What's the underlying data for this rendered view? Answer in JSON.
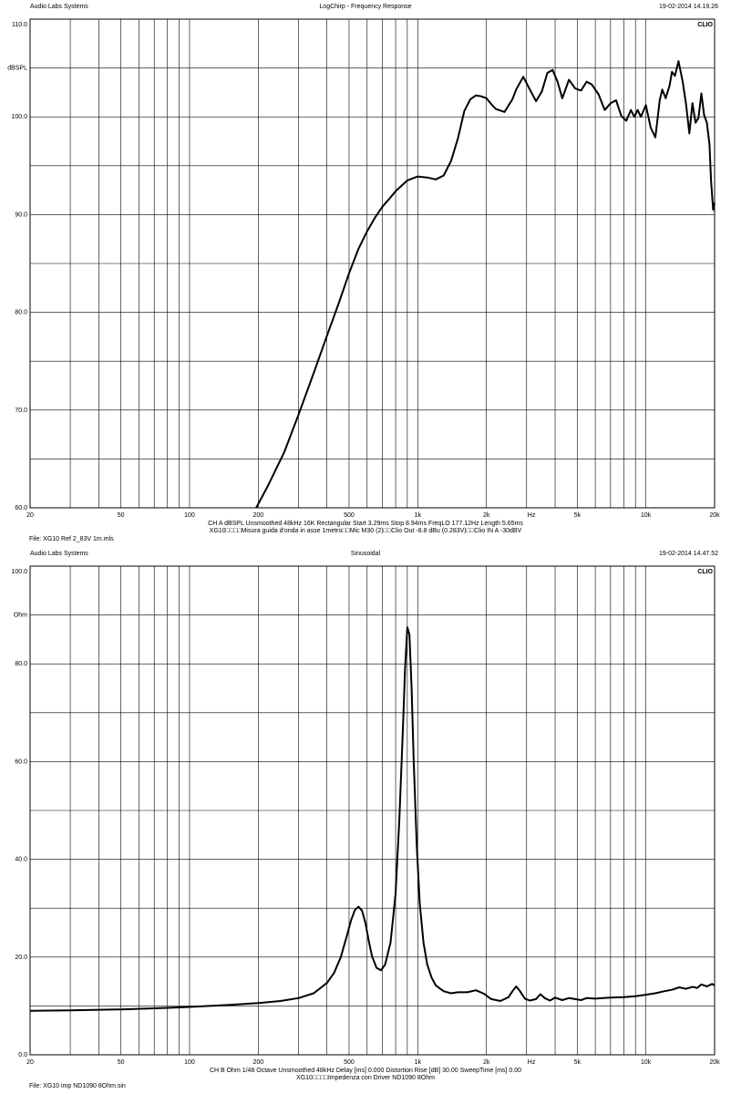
{
  "chart_data": [
    {
      "type": "line",
      "header_left": "Audio Labs Systems",
      "title": "LogChirp - Frequency Response",
      "header_right": "19-02-2014 14.19.26",
      "brand": "CLIO",
      "ylabel": "dBSPL",
      "xunit": "Hz",
      "xscale": "log",
      "xlim": [
        20,
        20000
      ],
      "ylim": [
        60,
        110
      ],
      "yticks": [
        60,
        70,
        80,
        90,
        100,
        110
      ],
      "ytick_labels": [
        "60.0",
        "70.0",
        "80.0",
        "90.0",
        "100.0",
        "110.0"
      ],
      "xtick_labels": [
        {
          "v": 20,
          "t": "20"
        },
        {
          "v": 50,
          "t": "50"
        },
        {
          "v": 100,
          "t": "100"
        },
        {
          "v": 200,
          "t": "200"
        },
        {
          "v": 500,
          "t": "500"
        },
        {
          "v": 1000,
          "t": "1k"
        },
        {
          "v": 2000,
          "t": "2k"
        },
        {
          "v": 5000,
          "t": "5k"
        },
        {
          "v": 10000,
          "t": "10k"
        },
        {
          "v": 20000,
          "t": "20k"
        }
      ],
      "footer_lines": [
        "CH A   dBSPL   Unsmoothed   48kHz   16K   Rectangular   Start 3.29ms   Stop 8.94ms   FreqLO 177.12Hz   Length 5.65ms",
        "XG10□□□□Misura guida d'onda in asse  1metro□□Mic M30 (2)□□Clio Out -8.8 dBu (0.283V)□□Clio IN A -30dBV"
      ],
      "file": "File: XG10 Ref 2_83V 1m.mls",
      "grid": true,
      "series": [
        {
          "x": [
            196,
            220,
            260,
            300,
            350,
            400,
            450,
            500,
            550,
            600,
            650,
            700,
            750,
            800,
            900,
            1000,
            1100,
            1200,
            1300,
            1400,
            1500,
            1600,
            1700,
            1800,
            1900,
            2000,
            2100,
            2200,
            2400,
            2600,
            2700,
            2900,
            3100,
            3300,
            3500,
            3700,
            3900,
            4100,
            4300,
            4600,
            4900,
            5200,
            5500,
            5800,
            6200,
            6600,
            7000,
            7400,
            7800,
            8200,
            8600,
            8900,
            9200,
            9500,
            10000,
            10500,
            11000,
            11500,
            11800,
            12200,
            12700,
            13000,
            13400,
            13900,
            14500,
            15000,
            15500,
            16000,
            16500,
            17000,
            17500,
            18000,
            18500,
            19000,
            19300,
            19700,
            20000
          ],
          "y": [
            60.0,
            62.2,
            65.7,
            69.5,
            73.8,
            77.6,
            80.9,
            84.0,
            86.5,
            88.3,
            89.7,
            90.8,
            91.6,
            92.4,
            93.5,
            93.9,
            93.8,
            93.6,
            94.0,
            95.5,
            97.8,
            100.6,
            101.8,
            102.2,
            102.1,
            101.9,
            101.3,
            100.8,
            100.5,
            101.8,
            102.8,
            104.1,
            102.8,
            101.6,
            102.6,
            104.5,
            104.8,
            103.6,
            101.9,
            103.8,
            102.9,
            102.7,
            103.6,
            103.3,
            102.3,
            100.7,
            101.4,
            101.7,
            100.1,
            99.6,
            100.7,
            100.0,
            100.7,
            100.0,
            101.2,
            98.9,
            97.9,
            101.7,
            102.8,
            101.9,
            103.2,
            104.6,
            104.2,
            105.7,
            103.6,
            101.3,
            98.3,
            101.4,
            99.4,
            99.9,
            102.4,
            100.2,
            99.4,
            97.2,
            93.5,
            90.5,
            91.2
          ]
        }
      ]
    },
    {
      "type": "line",
      "header_left": "Audio Labs Systems",
      "title": "Sinusoidal",
      "header_right": "19-02-2014 14.47.52",
      "brand": "CLIO",
      "ylabel": "Ohm",
      "xunit": "Hz",
      "xscale": "log",
      "xlim": [
        20,
        20000
      ],
      "ylim": [
        0,
        100
      ],
      "yticks": [
        0,
        20,
        40,
        60,
        80,
        100
      ],
      "ytick_labels": [
        "0.0",
        "20.0",
        "40.0",
        "60.0",
        "80.0",
        "100.0"
      ],
      "xtick_labels": [
        {
          "v": 20,
          "t": "20"
        },
        {
          "v": 50,
          "t": "50"
        },
        {
          "v": 100,
          "t": "100"
        },
        {
          "v": 200,
          "t": "200"
        },
        {
          "v": 500,
          "t": "500"
        },
        {
          "v": 1000,
          "t": "1k"
        },
        {
          "v": 2000,
          "t": "2k"
        },
        {
          "v": 5000,
          "t": "5k"
        },
        {
          "v": 10000,
          "t": "10k"
        },
        {
          "v": 20000,
          "t": "20k"
        }
      ],
      "footer_lines": [
        "CH B   Ohm   1/48 Octave   Unsmoothed   48kHz   Delay [ms] 0.000   Distortion Rise [dB] 30.00   SweepTime [ms] 0.00",
        "XG10□□□□Impedenza con Driver ND1090 8Ohm"
      ],
      "file": "File: XG10 imp ND1090 8Ohm.sin",
      "grid": true,
      "series": [
        {
          "x": [
            20,
            30,
            50,
            80,
            100,
            150,
            200,
            250,
            300,
            350,
            400,
            430,
            460,
            490,
            510,
            530,
            550,
            570,
            590,
            610,
            630,
            660,
            690,
            720,
            760,
            800,
            830,
            860,
            880,
            900,
            920,
            940,
            960,
            990,
            1020,
            1060,
            1100,
            1150,
            1200,
            1300,
            1400,
            1500,
            1650,
            1800,
            1950,
            2100,
            2300,
            2500,
            2600,
            2700,
            2800,
            2950,
            3100,
            3300,
            3450,
            3600,
            3800,
            4000,
            4300,
            4600,
            4900,
            5200,
            5500,
            6000,
            6500,
            7000,
            8000,
            9000,
            10000,
            11000,
            12000,
            13000,
            14000,
            15000,
            16000,
            16800,
            17500,
            18500,
            19500,
            20000
          ],
          "y": [
            9.0,
            9.1,
            9.3,
            9.6,
            9.8,
            10.2,
            10.6,
            11.0,
            11.6,
            12.6,
            14.7,
            16.8,
            20.0,
            24.5,
            27.5,
            29.6,
            30.3,
            29.5,
            27.0,
            23.3,
            20.2,
            17.8,
            17.3,
            18.5,
            23.0,
            33.0,
            48.0,
            66.0,
            79.0,
            87.5,
            86.0,
            75.0,
            60.0,
            43.0,
            31.0,
            23.0,
            18.5,
            15.8,
            14.2,
            13.0,
            12.6,
            12.8,
            12.8,
            13.2,
            12.5,
            11.4,
            11.0,
            11.8,
            13.0,
            14.0,
            13.1,
            11.5,
            11.1,
            11.4,
            12.4,
            11.6,
            11.1,
            11.7,
            11.2,
            11.6,
            11.4,
            11.2,
            11.6,
            11.5,
            11.6,
            11.7,
            11.8,
            12.0,
            12.3,
            12.6,
            13.0,
            13.3,
            13.8,
            13.5,
            13.9,
            13.7,
            14.4,
            14.0,
            14.5,
            14.2
          ]
        }
      ]
    }
  ]
}
